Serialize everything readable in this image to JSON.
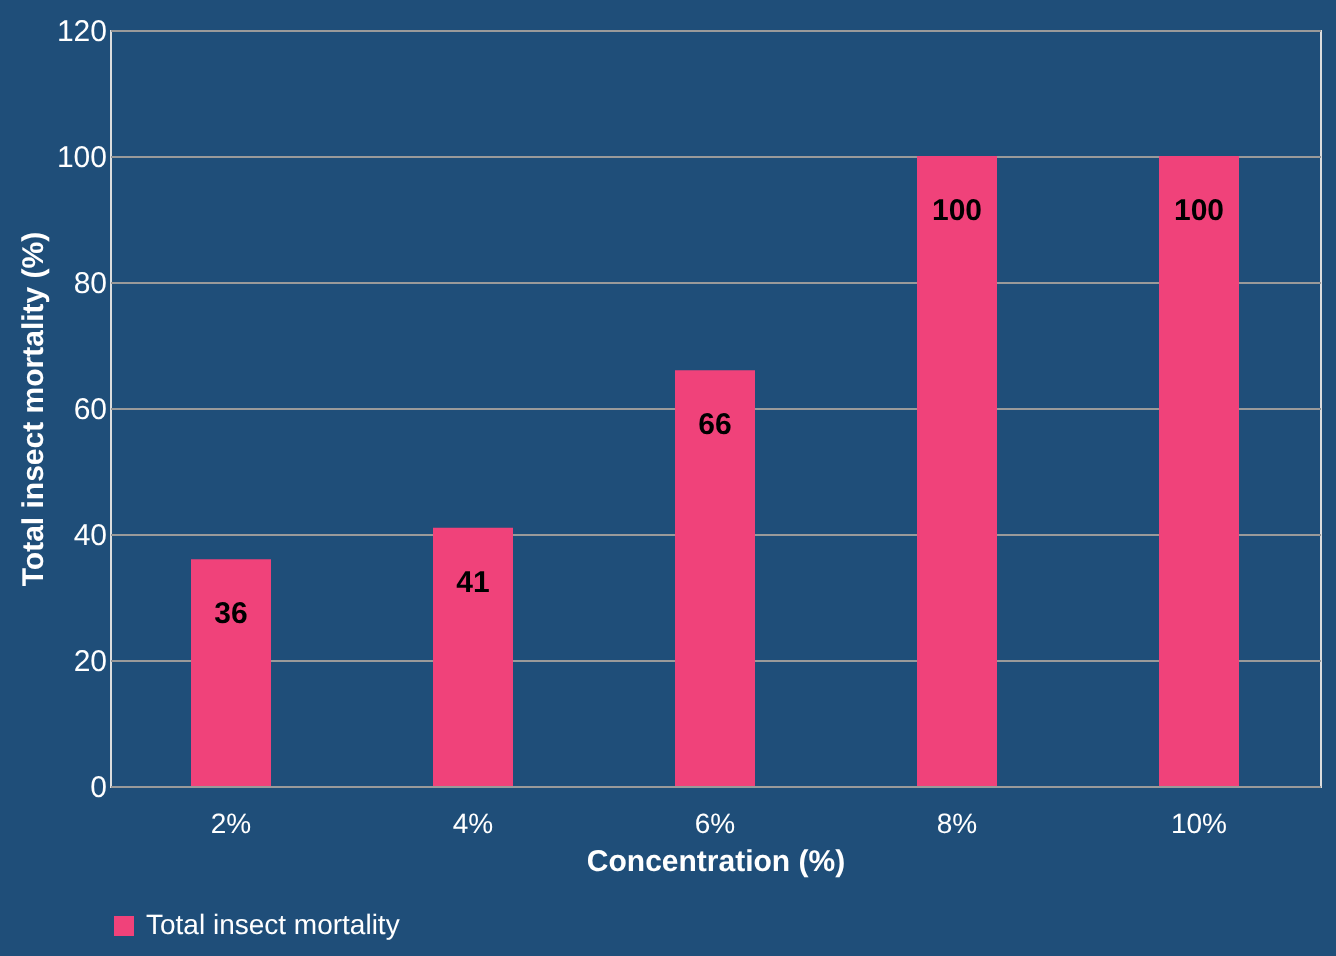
{
  "chart_data": {
    "type": "bar",
    "xlabel": "Concentration (%)",
    "ylabel": "Total insect mortality (%)",
    "categories": [
      "2%",
      "4%",
      "6%",
      "8%",
      "10%"
    ],
    "series": [
      {
        "name": "Total insect mortality",
        "color": "#f0427a",
        "values": [
          36,
          41,
          66,
          100,
          100
        ]
      }
    ],
    "ylim": [
      0,
      120
    ],
    "yticks": [
      0,
      20,
      40,
      60,
      80,
      100,
      120
    ],
    "grid": "y",
    "data_labels": true,
    "legend": "bottom left"
  }
}
